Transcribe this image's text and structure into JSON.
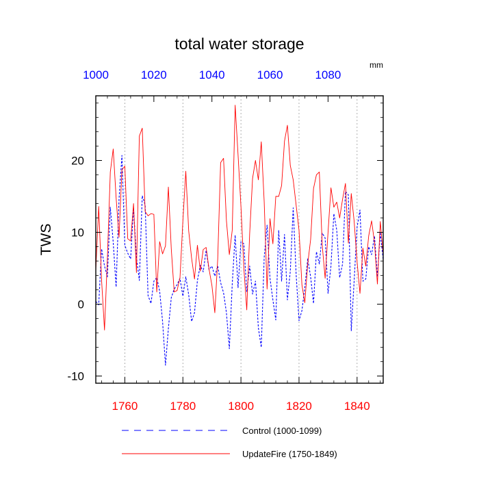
{
  "chart_data": {
    "type": "line",
    "title": "total water storage",
    "units": "mm",
    "ylabel": "TWS",
    "ylim": [
      -11,
      29
    ],
    "yticks": [
      "-10",
      "0",
      "10",
      "20"
    ],
    "x_bottom": {
      "range": [
        1750,
        1849
      ],
      "ticks": [
        "1760",
        "1780",
        "1800",
        "1820",
        "1840"
      ],
      "color": "#ff0000"
    },
    "x_top": {
      "range": [
        1000,
        1099
      ],
      "ticks": [
        "1000",
        "1020",
        "1040",
        "1060",
        "1080"
      ],
      "color": "#0000ff"
    },
    "grid": "vertical dashed at bottom-axis major ticks",
    "legend_placement": "bottom-center",
    "series": [
      {
        "name": "Control (1000-1099)",
        "color": "#0000ff",
        "style": "dashed",
        "x_axis": "top",
        "x_start": 1000,
        "values": [
          0.4,
          -0.1,
          7.7,
          5.3,
          3.8,
          13.5,
          8.6,
          2.4,
          14.6,
          20.7,
          8.2,
          7.1,
          6.3,
          13.4,
          6.5,
          3.3,
          15.1,
          13.8,
          1.2,
          0.1,
          3.2,
          3.7,
          1.8,
          -2.4,
          -8.5,
          -3.4,
          0.9,
          2.1,
          2.7,
          3.6,
          1.1,
          3.8,
          1.3,
          -2.4,
          -1.2,
          3.3,
          5.4,
          4.5,
          7.5,
          4.8,
          5.3,
          3.9,
          5.3,
          3.0,
          1.6,
          -1.2,
          -6.2,
          2.8,
          9.6,
          2.3,
          8.7,
          8.4,
          1.7,
          5.3,
          1.4,
          3.2,
          -3.3,
          -6.0,
          6.5,
          11.0,
          3.6,
          0.6,
          -2.2,
          10.3,
          3.2,
          9.7,
          0.6,
          4.6,
          13.4,
          4.2,
          -2.3,
          -0.9,
          2.3,
          6.3,
          3.8,
          0.1,
          7.3,
          5.6,
          9.9,
          9.2,
          1.5,
          5.3,
          12.6,
          10.3,
          3.7,
          5.6,
          15.7,
          15.2,
          -3.7,
          3.3,
          10.7,
          13.1,
          3.2,
          3.5,
          8.0,
          6.9,
          9.5,
          3.8,
          10.0,
          6.1
        ]
      },
      {
        "name": "UpdateFire (1750-1849)",
        "color": "#ff0000",
        "style": "solid",
        "x_axis": "bottom",
        "x_start": 1750,
        "values": [
          4.7,
          13.6,
          3.3,
          -3.6,
          6.5,
          18.4,
          21.6,
          14.8,
          9.3,
          18.7,
          19.2,
          9.1,
          8.8,
          14.0,
          4.4,
          23.4,
          24.5,
          12.9,
          12.3,
          12.6,
          12.5,
          1.7,
          8.7,
          7.0,
          8.1,
          16.3,
          7.7,
          1.7,
          1.9,
          3.7,
          11.6,
          18.5,
          10.2,
          6.4,
          3.5,
          8.2,
          4.6,
          7.6,
          7.9,
          4.9,
          2.6,
          -1.2,
          6.3,
          19.7,
          20.3,
          11.6,
          6.9,
          10.3,
          27.7,
          20.8,
          13.6,
          5.0,
          -0.8,
          9.8,
          17.5,
          20.0,
          17.3,
          22.6,
          14.3,
          2.1,
          11.9,
          8.4,
          15.0,
          15.0,
          16.5,
          22.7,
          24.9,
          19.3,
          17.3,
          13.8,
          10.3,
          2.7,
          0.2,
          5.6,
          9.0,
          16.1,
          18.0,
          18.4,
          8.2,
          3.6,
          10.0,
          16.2,
          13.5,
          14.2,
          12.0,
          14.6,
          16.8,
          8.5,
          15.4,
          11.5,
          5.9,
          1.5,
          7.8,
          5.3,
          9.5,
          11.6,
          8.6,
          2.8,
          11.5,
          6.9
        ]
      }
    ]
  }
}
